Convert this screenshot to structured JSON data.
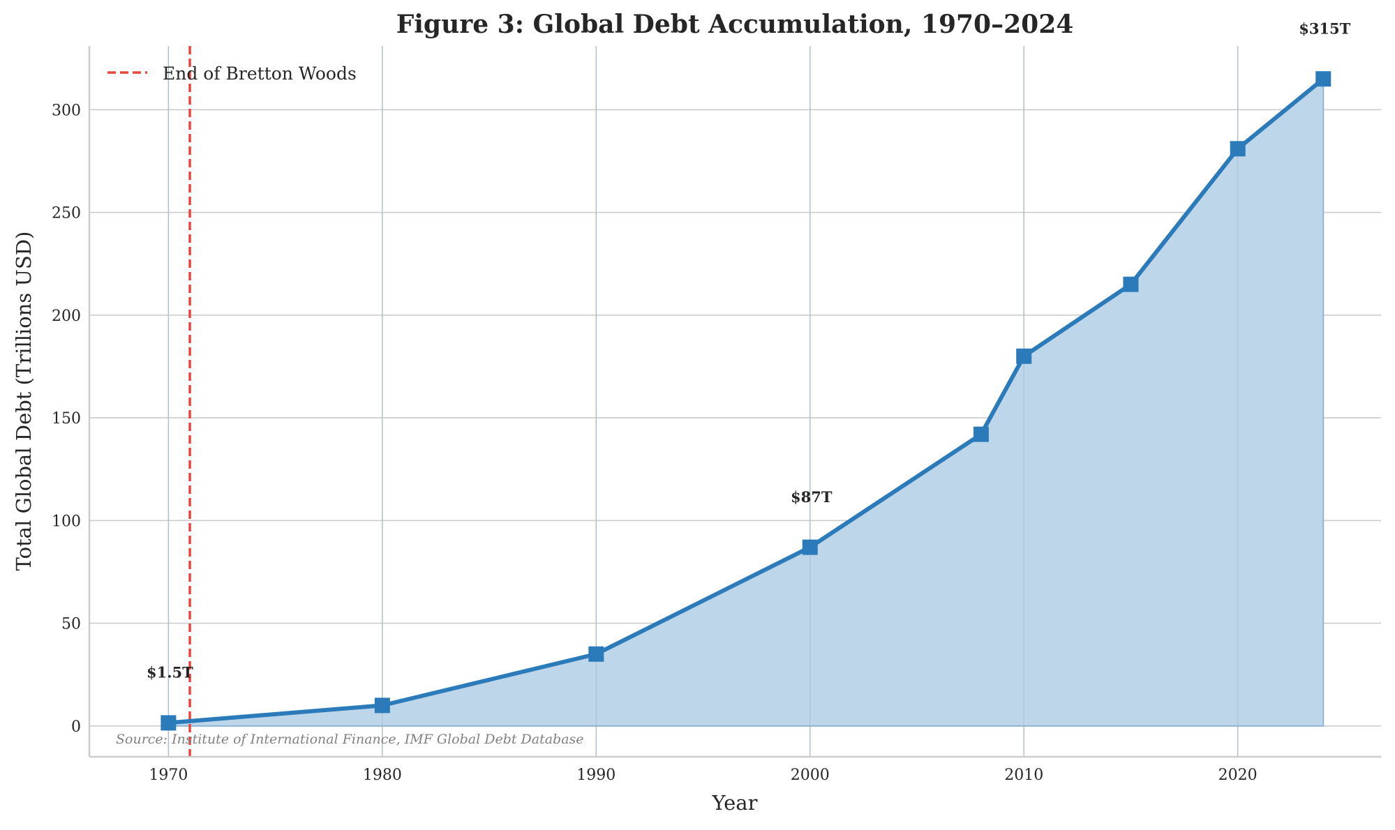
{
  "chart_data": {
    "type": "area",
    "title": "Figure 3: Global Debt Accumulation, 1970–2024",
    "xlabel": "Year",
    "ylabel": "Total Global Debt (Trillions USD)",
    "x": [
      1970,
      1980,
      1990,
      2000,
      2008,
      2010,
      2015,
      2020,
      2024
    ],
    "values": [
      1.5,
      10,
      35,
      87,
      142,
      180,
      215,
      281,
      315
    ],
    "xlim": [
      1966.3,
      2026.7
    ],
    "ylim": [
      -15,
      331
    ],
    "xticks": [
      "1970",
      "1980",
      "1990",
      "2000",
      "2010",
      "2020"
    ],
    "yticks": [
      "0",
      "50",
      "100",
      "150",
      "200",
      "250",
      "300"
    ],
    "grid": true,
    "line_color": "#2b7bba",
    "fill_color": "#bed6e9",
    "marker": "square",
    "vline": {
      "x": 1971,
      "label": "End of Bretton Woods",
      "color": "#e8453c",
      "style": "dashed"
    },
    "legend_placement": "top-left",
    "annotations": [
      {
        "x": 1970,
        "y": 1.5,
        "text": "$1.5T"
      },
      {
        "x": 2000,
        "y": 87,
        "text": "$87T"
      },
      {
        "x": 2024,
        "y": 315,
        "text": "$315T"
      }
    ],
    "source": "Source: Institute of International Finance, IMF Global Debt Database"
  }
}
